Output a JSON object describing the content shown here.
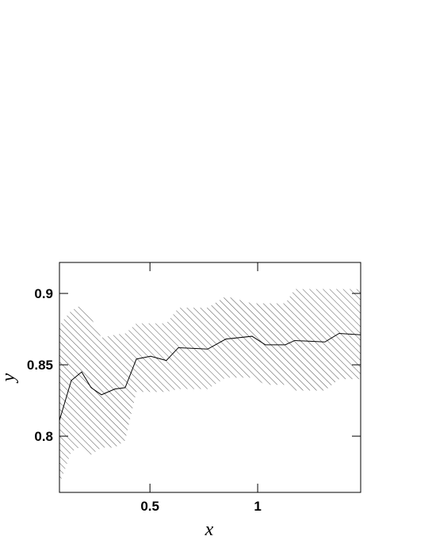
{
  "chart_data": {
    "type": "line",
    "x_label": "x",
    "y_label": "y",
    "x": [
      0.08,
      0.135,
      0.183,
      0.227,
      0.275,
      0.337,
      0.385,
      0.437,
      0.503,
      0.576,
      0.632,
      0.768,
      0.852,
      0.974,
      1.036,
      1.128,
      1.172,
      1.312,
      1.378,
      1.478
    ],
    "values": [
      0.811,
      0.839,
      0.845,
      0.834,
      0.829,
      0.833,
      0.834,
      0.854,
      0.856,
      0.853,
      0.862,
      0.861,
      0.868,
      0.87,
      0.864,
      0.864,
      0.867,
      0.866,
      0.872,
      0.871
    ],
    "band_lower": [
      0.766,
      0.789,
      0.793,
      0.787,
      0.792,
      0.792,
      0.797,
      0.831,
      0.831,
      0.831,
      0.833,
      0.833,
      0.841,
      0.841,
      0.836,
      0.836,
      0.832,
      0.832,
      0.84,
      0.84
    ],
    "band_upper": [
      0.878,
      0.888,
      0.892,
      0.883,
      0.869,
      0.871,
      0.872,
      0.879,
      0.879,
      0.879,
      0.89,
      0.89,
      0.898,
      0.893,
      0.893,
      0.893,
      0.903,
      0.903,
      0.903,
      0.903
    ],
    "color": "#000000",
    "band_color": "#555555",
    "xlim": [
      0.08,
      1.478
    ],
    "ylim": [
      0.7606,
      0.9217
    ],
    "xticks": [
      0.5,
      1
    ],
    "yticks": [
      0.8,
      0.85,
      0.9
    ]
  }
}
